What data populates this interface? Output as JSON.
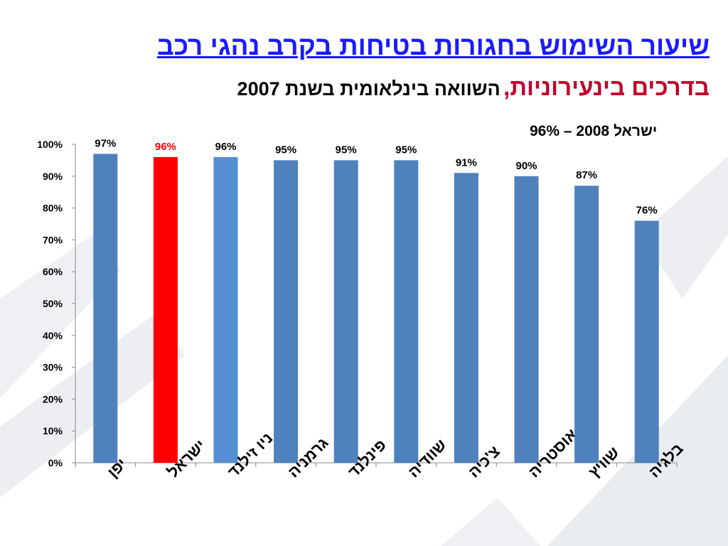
{
  "title": {
    "line1": "שיעור השימוש בחגורות בטיחות בקרב נהגי רכב",
    "line2_red": "בדרכים בינעירוניות,",
    "line2_black": "השוואה בינלאומית בשנת 2007"
  },
  "annotation": "ישראל 2008 – 96%",
  "colors": {
    "bar_default": "#4f81bd",
    "bar_highlight": "#ff0000",
    "bar_alt": "#558ed5",
    "title_blue": "#1a1aff",
    "title_red": "#c0002a"
  },
  "chart_data": {
    "type": "bar",
    "categories": [
      "יפן",
      "ישראל",
      "ניו זילנד",
      "גרמניה",
      "פינלנד",
      "שוודיה",
      "צ'כיה",
      "אוסטריה",
      "שוויץ",
      "בלגיה"
    ],
    "values": [
      97,
      96,
      96,
      95,
      95,
      95,
      91,
      90,
      87,
      76
    ],
    "data_labels": [
      "97%",
      "96%",
      "96%",
      "95%",
      "95%",
      "95%",
      "91%",
      "90%",
      "87%",
      "76%"
    ],
    "highlight_index": 1,
    "alt_color_index": 2,
    "ylim": [
      0,
      100
    ],
    "y_ticks": [
      "0%",
      "10%",
      "20%",
      "30%",
      "40%",
      "50%",
      "60%",
      "70%",
      "80%",
      "90%",
      "100%"
    ],
    "grid": false,
    "xlabel": "",
    "ylabel": ""
  }
}
